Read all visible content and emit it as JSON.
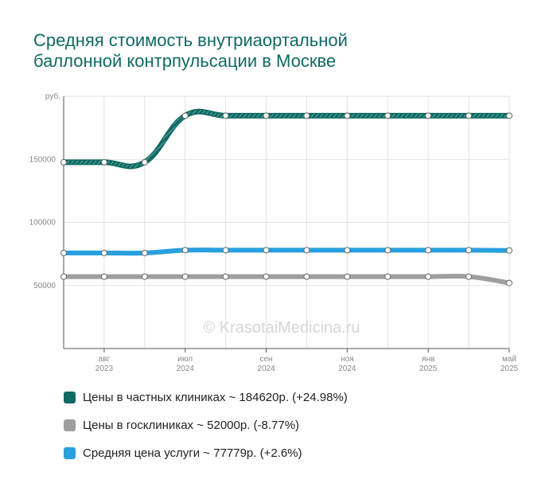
{
  "title_lines": [
    "Средняя стоимость внутриаортальной",
    "баллонной контрпульсации в Москве"
  ],
  "watermark": "© KrasotaiMedicina.ru",
  "chart_data": {
    "type": "line",
    "title": "Средняя стоимость внутриаортальной баллонной контрпульсации в Москве",
    "y_unit": "руб.",
    "ylim": [
      0,
      200000
    ],
    "y_ticks": [
      {
        "value": 50000,
        "label": "50000"
      },
      {
        "value": 100000,
        "label": "100000"
      },
      {
        "value": 150000,
        "label": "150000"
      }
    ],
    "x_count": 12,
    "x_ticks": [
      {
        "index": 1,
        "month": "авг",
        "year": "2023"
      },
      {
        "index": 3,
        "month": "июл",
        "year": "2024"
      },
      {
        "index": 5,
        "month": "сен",
        "year": "2024"
      },
      {
        "index": 7,
        "month": "ноя",
        "year": "2024"
      },
      {
        "index": 9,
        "month": "янв",
        "year": "2025"
      },
      {
        "index": 11,
        "month": "май",
        "year": "2025"
      }
    ],
    "grid": true,
    "legend_position": "bottom",
    "series": [
      {
        "name": "Цены в частных клиниках",
        "color": "#0e6b62",
        "pattern": "striped",
        "values": [
          147700,
          147700,
          147700,
          184620,
          184620,
          184620,
          184620,
          184620,
          184620,
          184620,
          184620,
          184620
        ]
      },
      {
        "name": "Цены в госклиниках",
        "color": "#9e9e9e",
        "pattern": "solid",
        "values": [
          57000,
          57000,
          57000,
          57000,
          57000,
          57000,
          57000,
          57000,
          57000,
          57000,
          57000,
          52000
        ]
      },
      {
        "name": "Средняя цена услуги",
        "color": "#27a0e0",
        "pattern": "solid",
        "values": [
          75800,
          75800,
          75800,
          78000,
          78000,
          78000,
          78000,
          78000,
          78000,
          78000,
          78000,
          77779
        ]
      }
    ]
  },
  "legend": [
    {
      "label": "Цены в частных клиниках ~ 184620р. (+24.98%)",
      "color": "#0e6b62"
    },
    {
      "label": "Цены в госклиниках ~ 52000р. (-8.77%)",
      "color": "#9e9e9e"
    },
    {
      "label": "Средняя цена услуги ~ 77779р. (+2.6%)",
      "color": "#27a0e0"
    }
  ]
}
